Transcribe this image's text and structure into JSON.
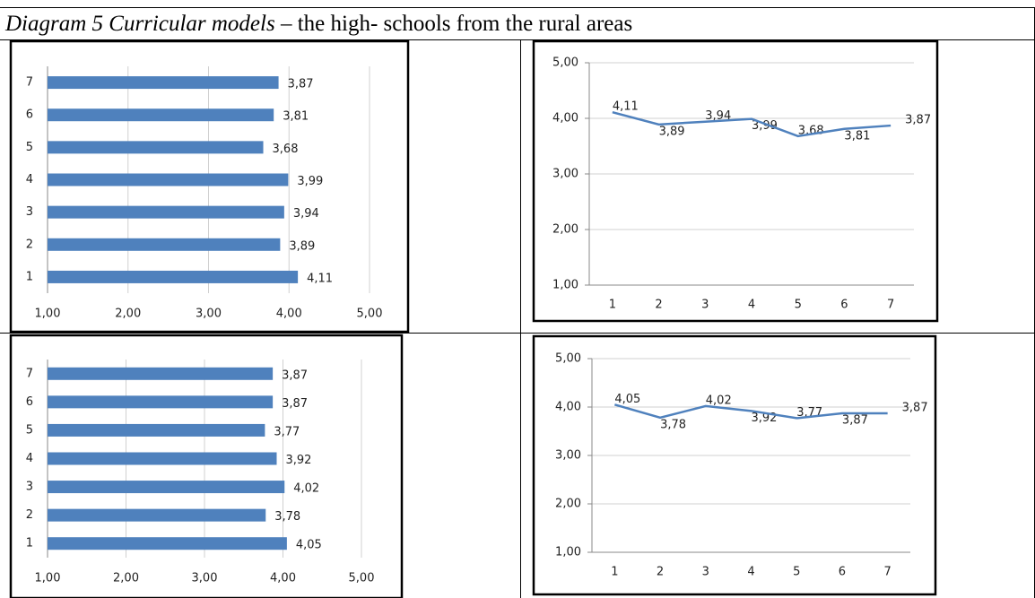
{
  "caption": {
    "label": "Diagram 5 Curricular models",
    "text": "– the high- schools from the rural areas"
  },
  "chart_data": [
    {
      "type": "hbar",
      "categories": [
        "1",
        "2",
        "3",
        "4",
        "5",
        "6",
        "7"
      ],
      "values": [
        4.11,
        3.89,
        3.94,
        3.99,
        3.68,
        3.81,
        3.87
      ],
      "value_labels": [
        "4,11",
        "3,89",
        "3,94",
        "3,99",
        "3,68",
        "3,81",
        "3,87"
      ],
      "color": "#4f81bd",
      "xlim": [
        1,
        5
      ],
      "xticks": [
        {
          "value": 1,
          "label": "1,00"
        },
        {
          "value": 2,
          "label": "2,00"
        },
        {
          "value": 3,
          "label": "3,00"
        },
        {
          "value": 4,
          "label": "4,00"
        },
        {
          "value": 5,
          "label": "5,00"
        }
      ],
      "grid": true
    },
    {
      "type": "line",
      "categories": [
        "1",
        "2",
        "3",
        "4",
        "5",
        "6",
        "7"
      ],
      "values": [
        4.11,
        3.89,
        3.94,
        3.99,
        3.68,
        3.81,
        3.87
      ],
      "value_labels": [
        "4,11",
        "3,89",
        "3,94",
        "3,99",
        "3,68",
        "3,81",
        "3,87"
      ],
      "color": "#4f81bd",
      "ylim": [
        1,
        5
      ],
      "yticks": [
        {
          "value": 1,
          "label": "1,00"
        },
        {
          "value": 2,
          "label": "2,00"
        },
        {
          "value": 3,
          "label": "3,00"
        },
        {
          "value": 4,
          "label": "4,00"
        },
        {
          "value": 5,
          "label": "5,00"
        }
      ],
      "grid": true
    },
    {
      "type": "hbar",
      "categories": [
        "1",
        "2",
        "3",
        "4",
        "5",
        "6",
        "7"
      ],
      "values": [
        4.05,
        3.78,
        4.02,
        3.92,
        3.77,
        3.87,
        3.87
      ],
      "value_labels": [
        "4,05",
        "3,78",
        "4,02",
        "3,92",
        "3,77",
        "3,87",
        "3,87"
      ],
      "color": "#4f81bd",
      "xlim": [
        1,
        5
      ],
      "xticks": [
        {
          "value": 1,
          "label": "1,00"
        },
        {
          "value": 2,
          "label": "2,00"
        },
        {
          "value": 3,
          "label": "3,00"
        },
        {
          "value": 4,
          "label": "4,00"
        },
        {
          "value": 5,
          "label": "5,00"
        }
      ],
      "grid": true
    },
    {
      "type": "line",
      "categories": [
        "1",
        "2",
        "3",
        "4",
        "5",
        "6",
        "7"
      ],
      "values": [
        4.05,
        3.78,
        4.02,
        3.92,
        3.77,
        3.87,
        3.87
      ],
      "value_labels": [
        "4,05",
        "3,78",
        "4,02",
        "3,92",
        "3,77",
        "3,87",
        "3,87"
      ],
      "color": "#4f81bd",
      "ylim": [
        1,
        5
      ],
      "yticks": [
        {
          "value": 1,
          "label": "1,00"
        },
        {
          "value": 2,
          "label": "2,00"
        },
        {
          "value": 3,
          "label": "3,00"
        },
        {
          "value": 4,
          "label": "4,00"
        },
        {
          "value": 5,
          "label": "5,00"
        }
      ],
      "grid": true
    }
  ]
}
